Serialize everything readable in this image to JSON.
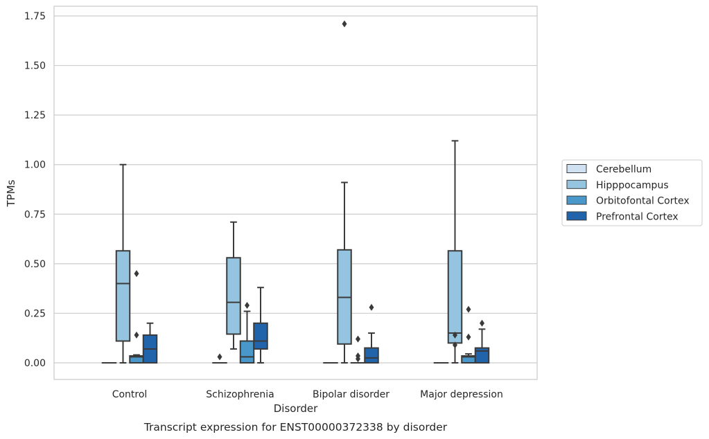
{
  "caption": "Transcript expression for ENST00000372338 by disorder",
  "chart_data": {
    "type": "boxplot",
    "title": "",
    "xlabel": "Disorder",
    "ylabel": "TPMs",
    "ylim": [
      -0.08,
      1.8
    ],
    "yticks": [
      "0.00",
      "0.25",
      "0.50",
      "0.75",
      "1.00",
      "1.25",
      "1.50",
      "1.75"
    ],
    "ytick_values": [
      0,
      0.25,
      0.5,
      0.75,
      1.0,
      1.25,
      1.5,
      1.75
    ],
    "categories": [
      "Control",
      "Schizophrenia",
      "Bipolar disorder",
      "Major depression"
    ],
    "grid": true,
    "legend_position": "right",
    "series": [
      {
        "name": "Cerebellum",
        "color": "#d0e1f2",
        "boxes": [
          {
            "q1": 0,
            "median": 0,
            "q3": 0,
            "whisker_low": 0,
            "whisker_high": 0,
            "outliers": []
          },
          {
            "q1": 0,
            "median": 0,
            "q3": 0,
            "whisker_low": 0,
            "whisker_high": 0,
            "outliers": [
              0.03
            ]
          },
          {
            "q1": 0,
            "median": 0,
            "q3": 0,
            "whisker_low": 0,
            "whisker_high": 0,
            "outliers": []
          },
          {
            "q1": 0,
            "median": 0,
            "q3": 0,
            "whisker_low": 0,
            "whisker_high": 0,
            "outliers": []
          }
        ]
      },
      {
        "name": "Hipppocampus",
        "color": "#94c4df",
        "boxes": [
          {
            "q1": 0.11,
            "median": 0.4,
            "q3": 0.565,
            "whisker_low": 0,
            "whisker_high": 1.0,
            "outliers": []
          },
          {
            "q1": 0.145,
            "median": 0.305,
            "q3": 0.53,
            "whisker_low": 0.07,
            "whisker_high": 0.71,
            "outliers": []
          },
          {
            "q1": 0.095,
            "median": 0.33,
            "q3": 0.57,
            "whisker_low": 0,
            "whisker_high": 0.91,
            "outliers": [
              1.71
            ]
          },
          {
            "q1": 0.1,
            "median": 0.15,
            "q3": 0.565,
            "whisker_low": 0,
            "whisker_high": 1.12,
            "outliers": [
              0.09,
              0.14
            ]
          }
        ]
      },
      {
        "name": "Orbitofontal Cortex",
        "color": "#4a98c9",
        "boxes": [
          {
            "q1": 0,
            "median": 0.03,
            "q3": 0.035,
            "whisker_low": 0,
            "whisker_high": 0.04,
            "outliers": [
              0.14,
              0.45
            ]
          },
          {
            "q1": 0,
            "median": 0.03,
            "q3": 0.11,
            "whisker_low": 0,
            "whisker_high": 0.26,
            "outliers": [
              0.29
            ]
          },
          {
            "q1": 0,
            "median": 0,
            "q3": 0,
            "whisker_low": 0,
            "whisker_high": 0,
            "outliers": [
              0.02,
              0.035,
              0.12
            ]
          },
          {
            "q1": 0,
            "median": 0.03,
            "q3": 0.035,
            "whisker_low": 0,
            "whisker_high": 0.045,
            "outliers": [
              0.13,
              0.27
            ]
          }
        ]
      },
      {
        "name": "Prefrontal Cortex",
        "color": "#2164ab",
        "boxes": [
          {
            "q1": 0,
            "median": 0.07,
            "q3": 0.14,
            "whisker_low": 0,
            "whisker_high": 0.2,
            "outliers": []
          },
          {
            "q1": 0.07,
            "median": 0.11,
            "q3": 0.2,
            "whisker_low": 0,
            "whisker_high": 0.38,
            "outliers": []
          },
          {
            "q1": 0,
            "median": 0.025,
            "q3": 0.075,
            "whisker_low": 0,
            "whisker_high": 0.15,
            "outliers": [
              0.28
            ]
          },
          {
            "q1": 0,
            "median": 0.06,
            "q3": 0.075,
            "whisker_low": 0,
            "whisker_high": 0.17,
            "outliers": [
              0.2
            ]
          }
        ]
      }
    ]
  }
}
